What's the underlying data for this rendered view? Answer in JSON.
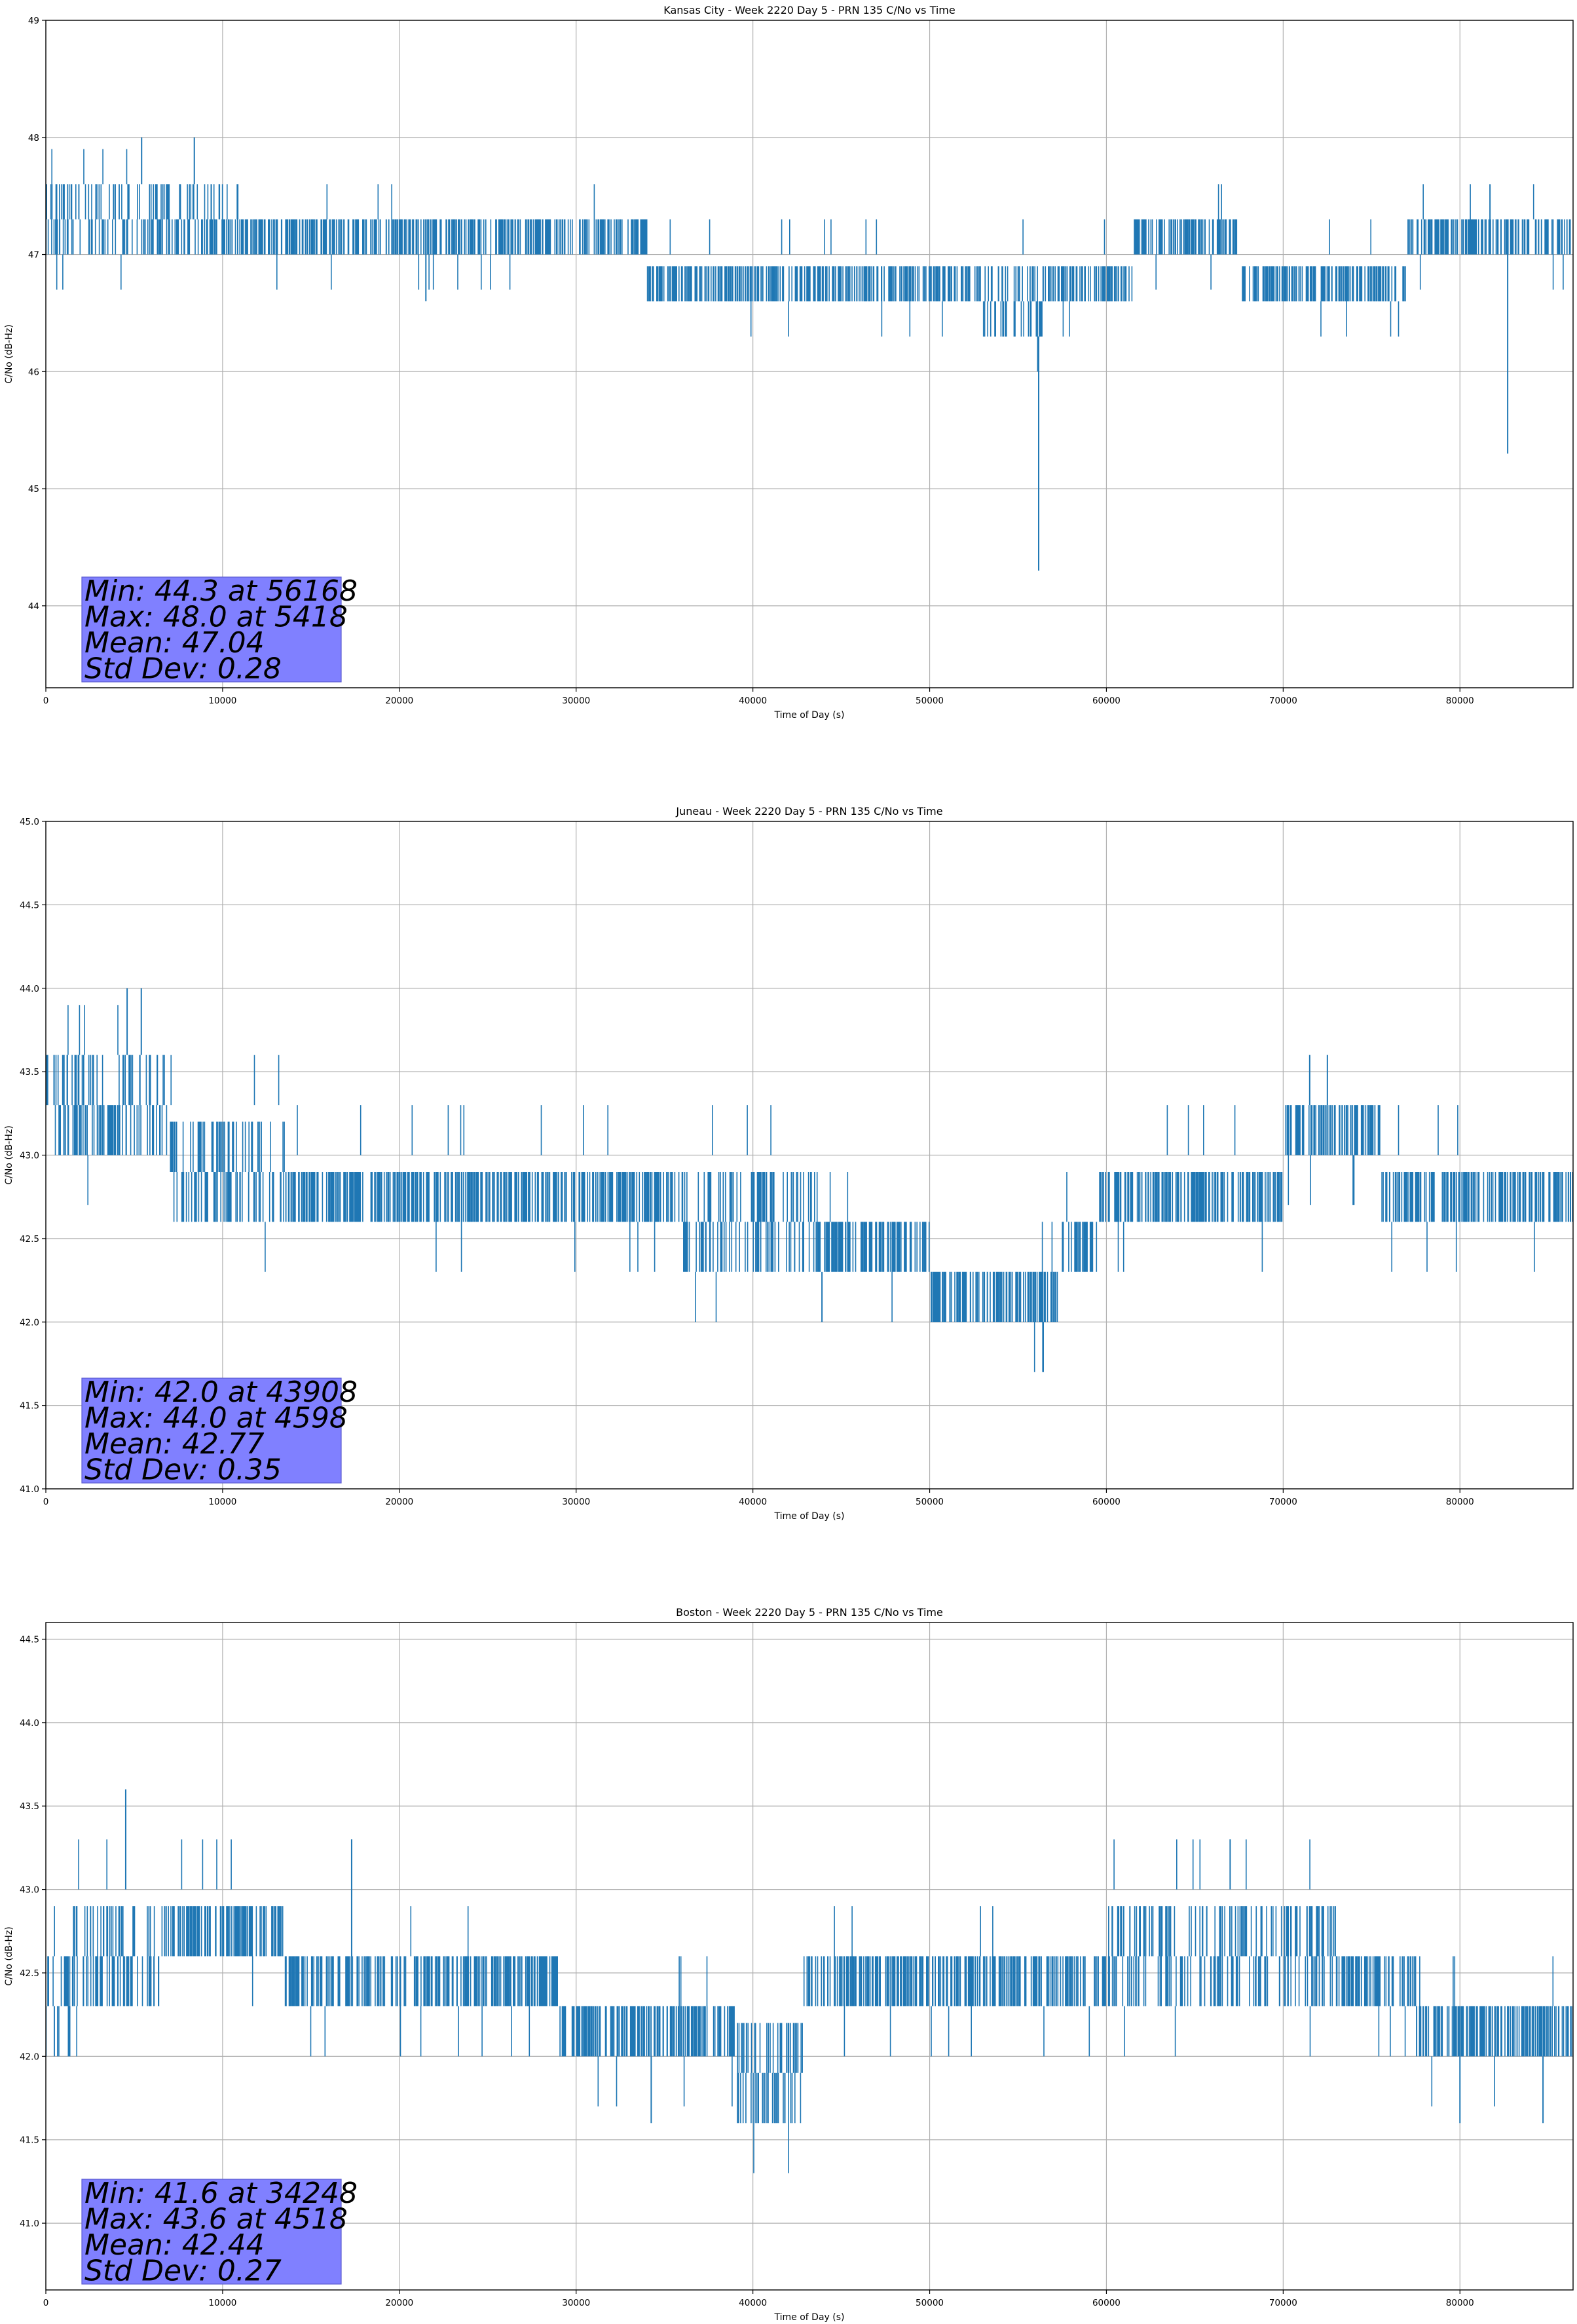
{
  "accent": "#1f77b4",
  "stats_box_color": "#8080ff",
  "chart_data": [
    {
      "type": "line",
      "title": "Kansas City - Week 2220 Day 5 - PRN 135 C/No vs Time",
      "xlabel": "Time of Day (s)",
      "ylabel": "C/No (dB-Hz)",
      "xlim": [
        0,
        86400
      ],
      "ylim": [
        43.3,
        49.0
      ],
      "xticks": [
        0,
        10000,
        20000,
        30000,
        40000,
        50000,
        60000,
        70000,
        80000
      ],
      "yticks": [
        44,
        45,
        46,
        47,
        48,
        49
      ],
      "ytick_labels": [
        "44",
        "45",
        "46",
        "47",
        "48",
        "49"
      ],
      "grid": true,
      "step": 0.3,
      "stats": [
        "Min: 44.3 at 56168",
        "Max: 48.0 at 5418",
        "Mean: 47.04",
        "Std Dev: 0.28"
      ],
      "band_segments": [
        {
          "x": [
            0,
            10000
          ],
          "low": 47.0,
          "high": 47.6
        },
        {
          "x": [
            10000,
            34000
          ],
          "low": 47.0,
          "high": 47.3
        },
        {
          "x": [
            34000,
            53000
          ],
          "low": 46.6,
          "high": 47.0
        },
        {
          "x": [
            53000,
            56500
          ],
          "low": 46.3,
          "high": 47.0
        },
        {
          "x": [
            56500,
            61500
          ],
          "low": 46.6,
          "high": 47.0
        },
        {
          "x": [
            61500,
            67500
          ],
          "low": 47.0,
          "high": 47.3
        },
        {
          "x": [
            67500,
            77000
          ],
          "low": 46.6,
          "high": 47.0
        },
        {
          "x": [
            77000,
            86400
          ],
          "low": 47.0,
          "high": 47.3
        }
      ],
      "spikes": [
        {
          "x": 5418,
          "y": 48.0
        },
        {
          "x": 8400,
          "y": 48.0
        },
        {
          "x": 21500,
          "y": 46.6
        },
        {
          "x": 56168,
          "y": 44.3
        },
        {
          "x": 82700,
          "y": 45.3
        },
        {
          "x": 81700,
          "y": 47.6
        }
      ]
    },
    {
      "type": "line",
      "title": "Juneau - Week 2220 Day 5 - PRN 135 C/No vs Time",
      "xlabel": "Time of Day (s)",
      "ylabel": "C/No (dB-Hz)",
      "xlim": [
        0,
        86400
      ],
      "ylim": [
        41.0,
        45.0
      ],
      "xticks": [
        0,
        10000,
        20000,
        30000,
        40000,
        50000,
        60000,
        70000,
        80000
      ],
      "yticks": [
        41.0,
        41.5,
        42.0,
        42.5,
        43.0,
        43.5,
        44.0,
        44.5,
        45.0
      ],
      "ytick_labels": [
        "41.0",
        "41.5",
        "42.0",
        "42.5",
        "43.0",
        "43.5",
        "44.0",
        "44.5",
        "45.0"
      ],
      "grid": true,
      "step": 0.3,
      "stats": [
        "Min: 42.0 at 43908",
        "Max: 44.0 at 4598",
        "Mean: 42.77",
        "Std Dev: 0.35"
      ],
      "band_segments": [
        {
          "x": [
            0,
            7000
          ],
          "low": 43.0,
          "high": 43.6
        },
        {
          "x": [
            7000,
            13500
          ],
          "low": 42.6,
          "high": 43.3
        },
        {
          "x": [
            13500,
            36000
          ],
          "low": 42.6,
          "high": 43.0
        },
        {
          "x": [
            36000,
            43500
          ],
          "low": 42.3,
          "high": 43.0
        },
        {
          "x": [
            43500,
            50000
          ],
          "low": 42.3,
          "high": 42.6
        },
        {
          "x": [
            50000,
            57500
          ],
          "low": 42.0,
          "high": 42.3
        },
        {
          "x": [
            57500,
            59500
          ],
          "low": 42.3,
          "high": 42.6
        },
        {
          "x": [
            59500,
            70000
          ],
          "low": 42.6,
          "high": 43.0
        },
        {
          "x": [
            70000,
            75500
          ],
          "low": 43.0,
          "high": 43.3
        },
        {
          "x": [
            75500,
            86400
          ],
          "low": 42.6,
          "high": 43.0
        }
      ],
      "spikes": [
        {
          "x": 4598,
          "y": 44.0
        },
        {
          "x": 5400,
          "y": 44.0
        },
        {
          "x": 43908,
          "y": 42.0
        },
        {
          "x": 71500,
          "y": 43.6
        },
        {
          "x": 72500,
          "y": 43.6
        }
      ]
    },
    {
      "type": "line",
      "title": "Boston - Week 2220 Day 5 - PRN 135 C/No vs Time",
      "xlabel": "Time of Day (s)",
      "ylabel": "C/No (dB-Hz)",
      "xlim": [
        0,
        86400
      ],
      "ylim": [
        40.6,
        44.6
      ],
      "xticks": [
        0,
        10000,
        20000,
        30000,
        40000,
        50000,
        60000,
        70000,
        80000
      ],
      "yticks": [
        41.0,
        41.5,
        42.0,
        42.5,
        43.0,
        43.5,
        44.0,
        44.5
      ],
      "ytick_labels": [
        "41.0",
        "41.5",
        "42.0",
        "42.5",
        "43.0",
        "43.5",
        "44.0",
        "44.5"
      ],
      "grid": true,
      "step": 0.3,
      "stats": [
        "Min: 41.6 at 34248",
        "Max: 43.6 at 4518",
        "Mean: 42.44",
        "Std Dev: 0.27"
      ],
      "band_segments": [
        {
          "x": [
            0,
            1500
          ],
          "low": 42.0,
          "high": 42.6
        },
        {
          "x": [
            1500,
            6500
          ],
          "low": 42.3,
          "high": 43.0
        },
        {
          "x": [
            6500,
            13500
          ],
          "low": 42.6,
          "high": 43.0
        },
        {
          "x": [
            13500,
            29000
          ],
          "low": 42.3,
          "high": 42.6
        },
        {
          "x": [
            29000,
            39000
          ],
          "low": 42.0,
          "high": 42.3
        },
        {
          "x": [
            39000,
            43000
          ],
          "low": 41.6,
          "high": 42.3
        },
        {
          "x": [
            43000,
            60000
          ],
          "low": 42.3,
          "high": 42.6
        },
        {
          "x": [
            60000,
            73000
          ],
          "low": 42.3,
          "high": 43.0
        },
        {
          "x": [
            73000,
            77500
          ],
          "low": 42.3,
          "high": 42.6
        },
        {
          "x": [
            77500,
            86400
          ],
          "low": 42.0,
          "high": 42.3
        }
      ],
      "spikes": [
        {
          "x": 4518,
          "y": 43.6
        },
        {
          "x": 17300,
          "y": 43.3
        },
        {
          "x": 34248,
          "y": 41.6
        },
        {
          "x": 67000,
          "y": 43.3
        },
        {
          "x": 80000,
          "y": 41.6
        },
        {
          "x": 84700,
          "y": 41.6
        }
      ]
    }
  ]
}
